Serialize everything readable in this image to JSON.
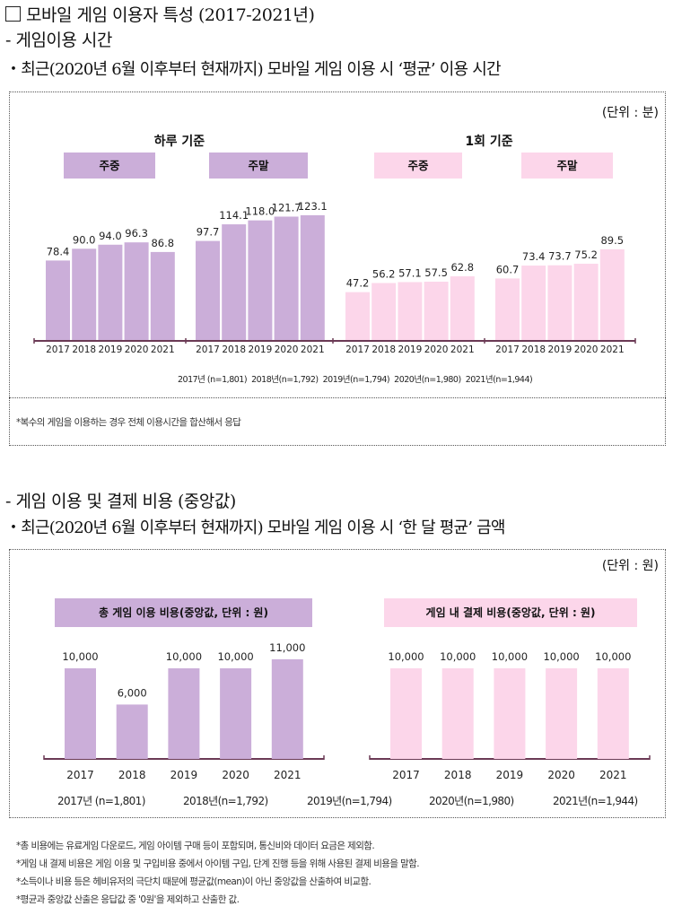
{
  "header": {
    "title": "모바일 게임 이용자 특성 (2017-2021년)",
    "section1": "- 게임이용 시간",
    "section1_sub": "・최근(2020년 6월 이후부터 현재까지) 모바일 게임 이용 시 ‘평균’ 이용 시간",
    "section2": "- 게임 이용 및 결제 비용 (중앙값)",
    "section2_sub": "・최근(2020년 6월 이후부터 현재까지) 모바일 게임 이용 시 ‘한 달 평균’ 금액"
  },
  "box1": {
    "unit": "(단위 : 분)",
    "group_daily": "하루 기준",
    "group_session": "1회 기준",
    "tag_weekday": "주중",
    "tag_weekend": "주말",
    "sample_sizes": "2017년 (n=1,801)  2018년(n=1,792)  2019년(n=1,794)  2020년(n=1,980)  2021년(n=1,944)",
    "footnote": "*복수의 게임을 이용하는 경우 전체 이용시간을 합산해서 응답"
  },
  "box2": {
    "unit": "(단위 : 원)",
    "tag_total": "총 게임 이용 비용(중앙값, 단위 : 원)",
    "tag_ingame": "게임 내 결제 비용(중앙값, 단위 : 원)",
    "sample_sizes": [
      "2017년 (n=1,801)",
      "2018년(n=1,792)",
      "2019년(n=1,794)",
      "2020년(n=1,980)",
      "2021년(n=1,944)"
    ]
  },
  "footnotes": [
    "*총 비용에는 유료게임 다운로드, 게임 아이템 구매 등이 포함되며, 통신비와 데이터 요금은 제외함.",
    "*게임 내 결제 비용은 게임 이용 및 구입비용 중에서 아이템 구입, 단계 진행 등을 위해 사용된 결제 비용을 말함.",
    "*소득이나 비용 등은 헤비유저의 극단치 때문에 평균값(mean)이 아닌 중앙값을 산출하여 비교함.",
    "*평균과 중앙값 산출은 응답값 중 '0원'을 제외하고 산출한 값."
  ],
  "colors": {
    "purple": "#cbaed9",
    "pink": "#fcd6ea",
    "axis": "#6b3a55"
  },
  "chart_data": [
    {
      "type": "bar",
      "title": "하루 기준 - 주중",
      "unit": "분",
      "categories": [
        "2017",
        "2018",
        "2019",
        "2020",
        "2021"
      ],
      "values": [
        78.4,
        90.0,
        94.0,
        96.3,
        86.8
      ],
      "labels": [
        "78.4",
        "90.0",
        "94.0",
        "96.3",
        "86.8"
      ],
      "color": "purple"
    },
    {
      "type": "bar",
      "title": "하루 기준 - 주말",
      "unit": "분",
      "categories": [
        "2017",
        "2018",
        "2019",
        "2020",
        "2021"
      ],
      "values": [
        97.7,
        114.1,
        118.0,
        121.7,
        123.1
      ],
      "labels": [
        "97.7",
        "114.1",
        "118.0",
        "121.7",
        "123.1"
      ],
      "color": "purple"
    },
    {
      "type": "bar",
      "title": "1회 기준 - 주중",
      "unit": "분",
      "categories": [
        "2017",
        "2018",
        "2019",
        "2020",
        "2021"
      ],
      "values": [
        47.2,
        56.2,
        57.1,
        57.5,
        62.8
      ],
      "labels": [
        "47.2",
        "56.2",
        "57.1",
        "57.5",
        "62.8"
      ],
      "color": "pink"
    },
    {
      "type": "bar",
      "title": "1회 기준 - 주말",
      "unit": "분",
      "categories": [
        "2017",
        "2018",
        "2019",
        "2020",
        "2021"
      ],
      "values": [
        60.7,
        73.4,
        73.7,
        75.2,
        89.5
      ],
      "labels": [
        "60.7",
        "73.4",
        "73.7",
        "75.2",
        "89.5"
      ],
      "color": "pink"
    },
    {
      "type": "bar",
      "title": "총 게임 이용 비용(중앙값, 단위 : 원)",
      "unit": "원",
      "categories": [
        "2017",
        "2018",
        "2019",
        "2020",
        "2021"
      ],
      "values": [
        10000,
        6000,
        10000,
        10000,
        11000
      ],
      "labels": [
        "10,000",
        "6,000",
        "10,000",
        "10,000",
        "11,000"
      ],
      "color": "purple"
    },
    {
      "type": "bar",
      "title": "게임 내 결제 비용(중앙값, 단위 : 원)",
      "unit": "원",
      "categories": [
        "2017",
        "2018",
        "2019",
        "2020",
        "2021"
      ],
      "values": [
        10000,
        10000,
        10000,
        10000,
        10000
      ],
      "labels": [
        "10,000",
        "10,000",
        "10,000",
        "10,000",
        "10,000"
      ],
      "color": "pink"
    }
  ]
}
